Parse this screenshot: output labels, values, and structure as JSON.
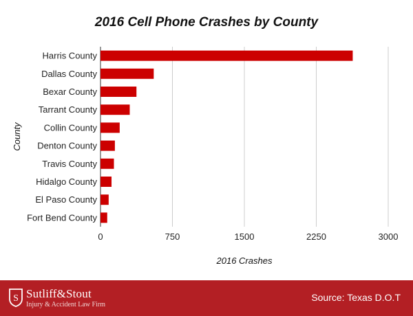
{
  "chart_data": {
    "type": "bar",
    "orientation": "horizontal",
    "title": "2016 Cell Phone Crashes by County",
    "xlabel": "2016 Crashes",
    "ylabel": "County",
    "categories": [
      "Harris County",
      "Dallas County",
      "Bexar County",
      "Tarrant County",
      "Collin County",
      "Denton County",
      "Travis County",
      "Hidalgo County",
      "El Paso County",
      "Fort Bend County"
    ],
    "values": [
      2630,
      555,
      375,
      305,
      200,
      150,
      140,
      115,
      85,
      70
    ],
    "xlim": [
      0,
      3000
    ],
    "xticks": [
      "0",
      "750",
      "1500",
      "2250",
      "3000"
    ],
    "grid": "vertical",
    "bar_color": "#cc0000"
  },
  "footer": {
    "brand_name": "Sutliff&Stout",
    "tagline": "Injury & Accident Law Firm",
    "source": "Source: Texas D.O.T",
    "background": "#b31f24"
  }
}
